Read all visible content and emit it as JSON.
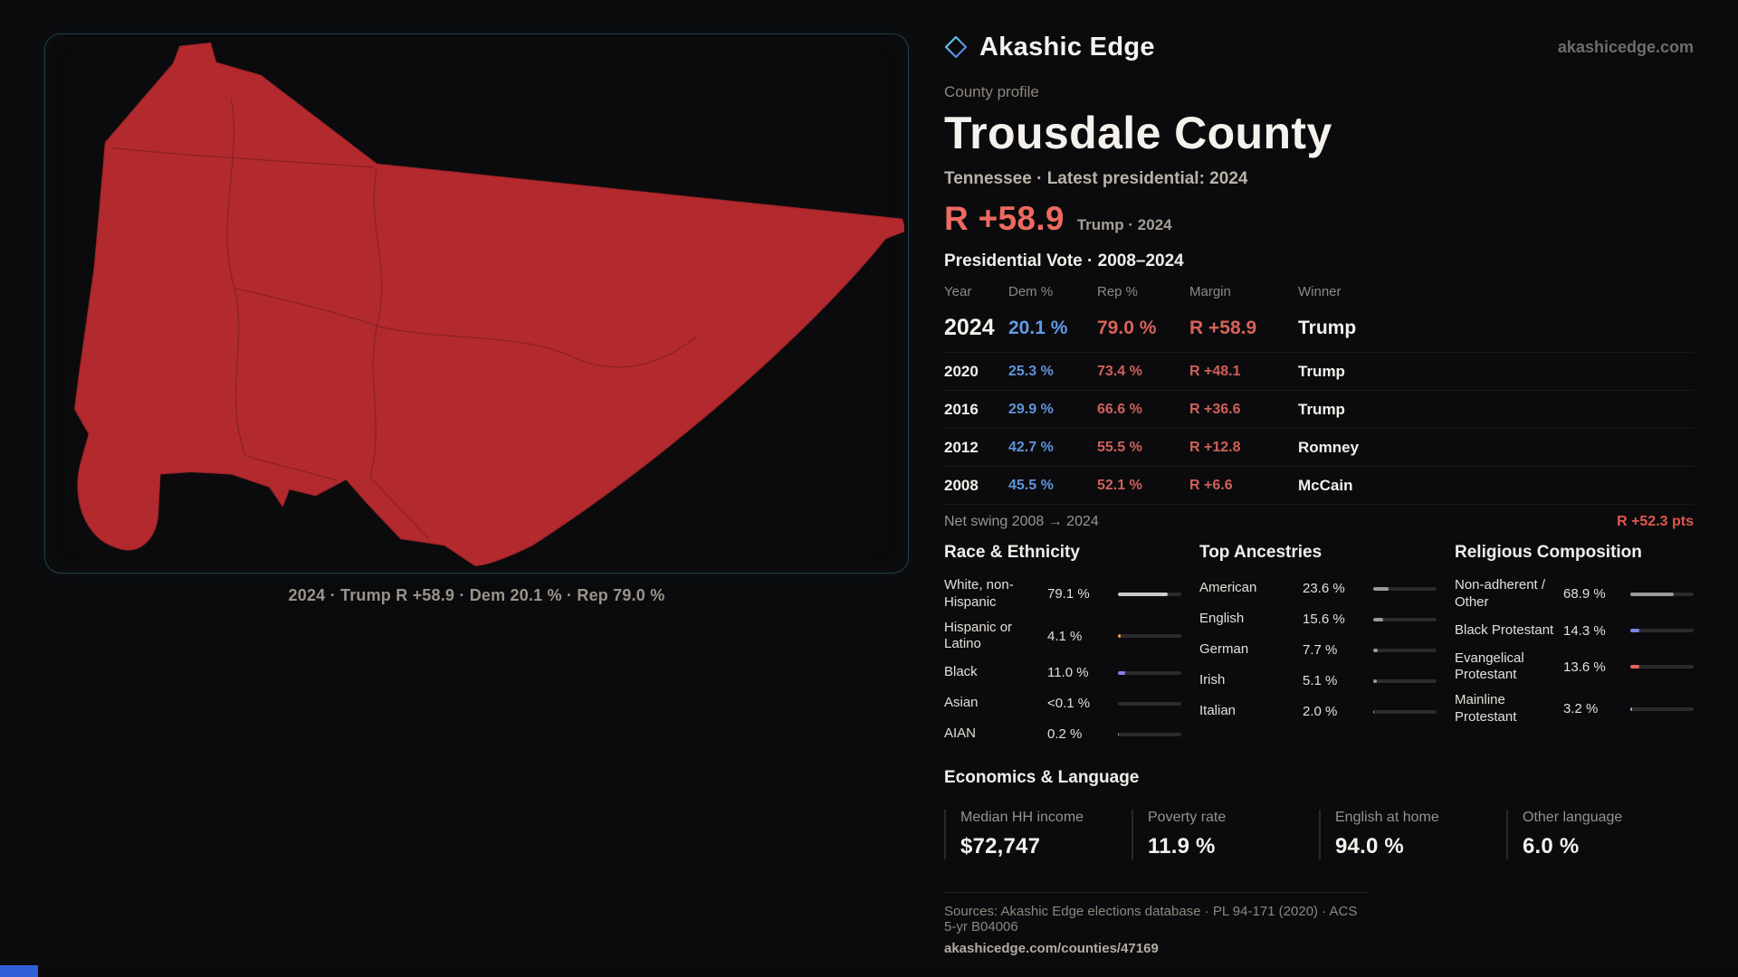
{
  "brand": {
    "name": "Akashic Edge",
    "site": "akashicedge.com",
    "logo_color_a": "#62d9e2",
    "logo_color_b": "#5b6ee0"
  },
  "colors": {
    "dem_blue": "#5f93d8",
    "rep_red": "#d0605a",
    "accent_red": "#ee6a61",
    "map_fill": "#b22a2e",
    "map_line": "#7c1d21",
    "bottom_accent": "#2f5fd9"
  },
  "map": {
    "caption": "2024 · Trump R +58.9 · Dem 20.1 % · Rep 79.0 %"
  },
  "profile": {
    "eyebrow": "County profile",
    "title": "Trousdale County",
    "subtitle": "Tennessee · Latest presidential: 2024",
    "headline_margin": "R +58.9",
    "headline_note": "Trump · 2024"
  },
  "vote_table": {
    "title": "Presidential Vote · 2008–2024",
    "columns": {
      "year": "Year",
      "dem": "Dem %",
      "rep": "Rep %",
      "margin": "Margin",
      "winner": "Winner"
    },
    "rows": [
      {
        "year": "2024",
        "dem": "20.1 %",
        "rep": "79.0 %",
        "margin": "R +58.9",
        "winner": "Trump"
      },
      {
        "year": "2020",
        "dem": "25.3 %",
        "rep": "73.4 %",
        "margin": "R +48.1",
        "winner": "Trump"
      },
      {
        "year": "2016",
        "dem": "29.9 %",
        "rep": "66.6 %",
        "margin": "R +36.6",
        "winner": "Trump"
      },
      {
        "year": "2012",
        "dem": "42.7 %",
        "rep": "55.5 %",
        "margin": "R +12.8",
        "winner": "Romney"
      },
      {
        "year": "2008",
        "dem": "45.5 %",
        "rep": "52.1 %",
        "margin": "R +6.6",
        "winner": "McCain"
      }
    ],
    "net_swing_label": "Net swing 2008 → 2024",
    "net_swing_value": "R +52.3 pts"
  },
  "race": {
    "title": "Race & Ethnicity",
    "rows": [
      {
        "label": "White, non-Hispanic",
        "value": "79.1 %",
        "pct": 79.1,
        "color": "#cbcbcb"
      },
      {
        "label": "Hispanic or Latino",
        "value": "4.1 %",
        "pct": 4.1,
        "color": "#e8a23c"
      },
      {
        "label": "Black",
        "value": "11.0 %",
        "pct": 11.0,
        "color": "#8f7ae6"
      },
      {
        "label": "Asian",
        "value": "<0.1 %",
        "pct": 0,
        "color": "#9a9a9a"
      },
      {
        "label": "AIAN",
        "value": "0.2 %",
        "pct": 0.2,
        "color": "#9a9a9a"
      }
    ]
  },
  "ancestries": {
    "title": "Top Ancestries",
    "rows": [
      {
        "label": "American",
        "value": "23.6 %",
        "pct": 23.6,
        "color": "#9a9a9a"
      },
      {
        "label": "English",
        "value": "15.6 %",
        "pct": 15.6,
        "color": "#9a9a9a"
      },
      {
        "label": "German",
        "value": "7.7 %",
        "pct": 7.7,
        "color": "#9a9a9a"
      },
      {
        "label": "Irish",
        "value": "5.1 %",
        "pct": 5.1,
        "color": "#9a9a9a"
      },
      {
        "label": "Italian",
        "value": "2.0 %",
        "pct": 2.0,
        "color": "#9a9a9a"
      }
    ]
  },
  "religion": {
    "title": "Religious Composition",
    "rows": [
      {
        "label": "Non-adherent / Other",
        "value": "68.9 %",
        "pct": 68.9,
        "color": "#9a9a9a"
      },
      {
        "label": "Black Protestant",
        "value": "14.3 %",
        "pct": 14.3,
        "color": "#7d84e8"
      },
      {
        "label": "Evangelical Protestant",
        "value": "13.6 %",
        "pct": 13.6,
        "color": "#e0655c"
      },
      {
        "label": "Mainline Protestant",
        "value": "3.2 %",
        "pct": 3.2,
        "color": "#8fb3e8"
      }
    ]
  },
  "economics": {
    "title": "Economics & Language",
    "stats": [
      {
        "label": "Median HH income",
        "value": "$72,747"
      },
      {
        "label": "Poverty rate",
        "value": "11.9 %"
      },
      {
        "label": "English at home",
        "value": "94.0 %"
      },
      {
        "label": "Other language",
        "value": "6.0 %"
      }
    ]
  },
  "footer": {
    "sources": "Sources: Akashic Edge elections database · PL 94-171 (2020) · ACS 5-yr B04006",
    "permalink": "akashicedge.com/counties/47169"
  }
}
